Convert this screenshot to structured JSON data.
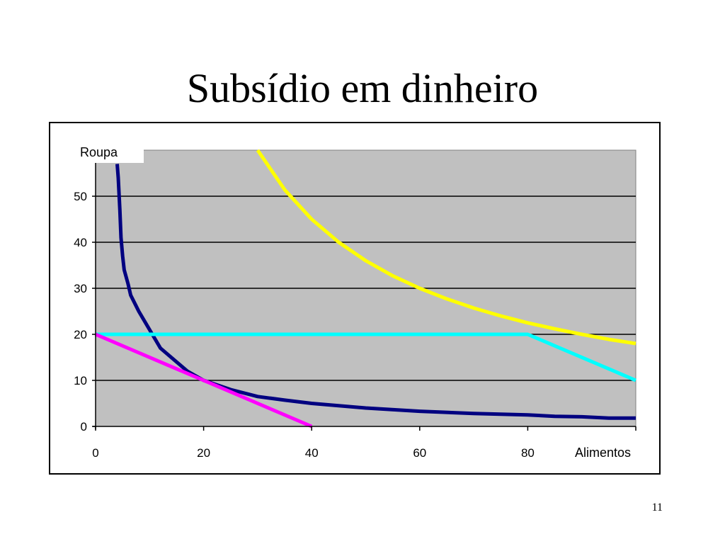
{
  "slide": {
    "title": "Subsídio em dinheiro",
    "page_number": "11"
  },
  "chart_data": {
    "type": "line",
    "title": "",
    "xlabel": "Alimentos",
    "ylabel": "Roupa",
    "xlim": [
      0,
      100
    ],
    "ylim": [
      0,
      60
    ],
    "x_ticks": [
      0,
      20,
      40,
      60,
      80
    ],
    "y_ticks": [
      0,
      10,
      20,
      30,
      40,
      50
    ],
    "grid": "horizontal",
    "plot_background": "#C0C0C0",
    "series": [
      {
        "color": "#000080",
        "points": [
          [
            4,
            57
          ],
          [
            4.2,
            54
          ],
          [
            4.5,
            47
          ],
          [
            4.7,
            41
          ],
          [
            5,
            37
          ],
          [
            5.3,
            34
          ],
          [
            6,
            31
          ],
          [
            6.5,
            28.5
          ],
          [
            8,
            25
          ],
          [
            10,
            21
          ],
          [
            12,
            17
          ],
          [
            13,
            16
          ],
          [
            15,
            14
          ],
          [
            17,
            12
          ],
          [
            20,
            10
          ],
          [
            25,
            8
          ],
          [
            30,
            6.5
          ],
          [
            35,
            5.7
          ],
          [
            40,
            5
          ],
          [
            50,
            4
          ],
          [
            60,
            3.3
          ],
          [
            70,
            2.8
          ],
          [
            80,
            2.5
          ],
          [
            85,
            2.2
          ],
          [
            90,
            2.1
          ],
          [
            95,
            1.8
          ],
          [
            100,
            1.8
          ]
        ]
      },
      {
        "color": "#FFFF00",
        "points": [
          [
            30,
            60
          ],
          [
            35,
            51.4
          ],
          [
            40,
            45
          ],
          [
            45,
            40
          ],
          [
            50,
            36
          ],
          [
            55,
            32.7
          ],
          [
            60,
            30
          ],
          [
            65,
            27.7
          ],
          [
            70,
            25.7
          ],
          [
            75,
            24
          ],
          [
            80,
            22.5
          ],
          [
            85,
            21.2
          ],
          [
            90,
            20
          ],
          [
            95,
            18.9
          ],
          [
            100,
            18
          ]
        ]
      },
      {
        "color": "#00FFFF",
        "points": [
          [
            0,
            20
          ],
          [
            80,
            20
          ],
          [
            100,
            10
          ]
        ]
      },
      {
        "color": "#FF00FF",
        "points": [
          [
            0,
            20
          ],
          [
            40,
            0
          ]
        ]
      }
    ]
  }
}
